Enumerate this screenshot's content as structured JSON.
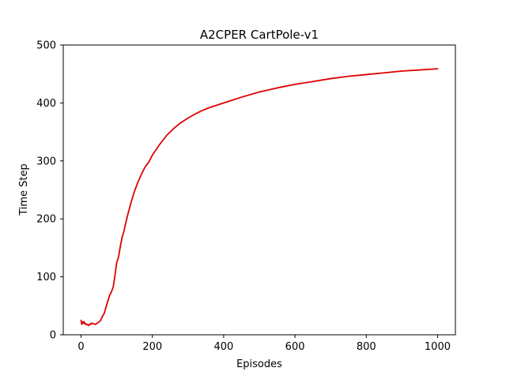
{
  "chart_data": {
    "type": "line",
    "title": "A2CPER CartPole-v1",
    "xlabel": "Episodes",
    "ylabel": "Time Step",
    "xlim": [
      -50,
      1050
    ],
    "ylim": [
      0,
      500
    ],
    "xticks": [
      0,
      200,
      400,
      600,
      800,
      1000
    ],
    "yticks": [
      0,
      100,
      200,
      300,
      400,
      500
    ],
    "grid": false,
    "legend": "none",
    "series": [
      {
        "color": "#e00000",
        "x": [
          0,
          2,
          4,
          6,
          8,
          10,
          12,
          14,
          16,
          18,
          20,
          22,
          24,
          26,
          28,
          30,
          35,
          40,
          45,
          50,
          55,
          60,
          65,
          70,
          75,
          80,
          85,
          90,
          95,
          100,
          105,
          110,
          115,
          120,
          125,
          130,
          140,
          150,
          160,
          170,
          180,
          190,
          200,
          220,
          240,
          260,
          280,
          300,
          320,
          340,
          360,
          380,
          400,
          450,
          500,
          550,
          600,
          650,
          700,
          750,
          800,
          850,
          900,
          950,
          1000
        ],
        "y": [
          25,
          18,
          22,
          20,
          23,
          19,
          20,
          18,
          17,
          18,
          17,
          16,
          18,
          19,
          18,
          20,
          19,
          18,
          20,
          22,
          25,
          32,
          37,
          48,
          58,
          68,
          74,
          82,
          102,
          125,
          134,
          152,
          168,
          178,
          192,
          205,
          228,
          248,
          264,
          278,
          290,
          298,
          310,
          328,
          344,
          356,
          366,
          374,
          381,
          387,
          392,
          396,
          400,
          410,
          419,
          426,
          432,
          437,
          442,
          446,
          449,
          452,
          455,
          457,
          459
        ]
      }
    ]
  }
}
